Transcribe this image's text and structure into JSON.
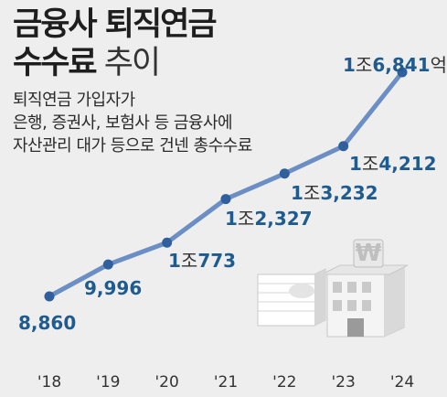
{
  "title": {
    "line1": "금융사 퇴직연금",
    "line2_main": "수수료",
    "line2_sub": " 추이"
  },
  "description": [
    "퇴직연금 가입자가",
    "은행, 증권사, 보험사 등 금융사에",
    "자산관리 대가 등으로 건넨 총수수료"
  ],
  "chart_data": {
    "type": "line",
    "unit": "억 원",
    "x": [
      "'18",
      "'19",
      "'20",
      "'21",
      "'22",
      "'23",
      "'24"
    ],
    "values": [
      8860,
      9996,
      10773,
      12327,
      13232,
      14212,
      16841
    ],
    "labels": [
      {
        "parts": [
          {
            "t": "8,860"
          }
        ]
      },
      {
        "parts": [
          {
            "t": "9,996"
          }
        ]
      },
      {
        "parts": [
          {
            "t": "1"
          },
          {
            "t": "조",
            "u": true
          },
          {
            "t": "773"
          }
        ]
      },
      {
        "parts": [
          {
            "t": "1"
          },
          {
            "t": "조",
            "u": true
          },
          {
            "t": "2,327"
          }
        ]
      },
      {
        "parts": [
          {
            "t": "1"
          },
          {
            "t": "조",
            "u": true
          },
          {
            "t": "3,232"
          }
        ]
      },
      {
        "parts": [
          {
            "t": "1"
          },
          {
            "t": "조",
            "u": true
          },
          {
            "t": "4,212"
          }
        ]
      },
      {
        "parts": [
          {
            "t": "1"
          },
          {
            "t": "조",
            "u": true
          },
          {
            "t": "6,841"
          },
          {
            "t": "억 원",
            "u": true
          }
        ]
      }
    ],
    "line_color": "#6b8fc4",
    "marker_color": "#2f5f9c",
    "label_color": "#1f5b8f"
  }
}
